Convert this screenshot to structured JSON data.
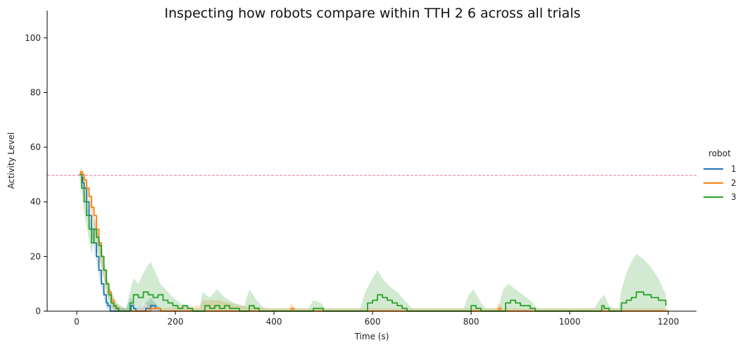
{
  "chart_data": {
    "type": "line",
    "title": "Inspecting how robots compare within TTH 2 6 across all trials",
    "xlabel": "Time (s)",
    "ylabel": "Activity Level",
    "xlim": [
      -60,
      1257
    ],
    "ylim": [
      0,
      110
    ],
    "x_ticks": [
      0,
      200,
      400,
      600,
      800,
      1000,
      1200
    ],
    "y_ticks": [
      0,
      20,
      40,
      60,
      80,
      100
    ],
    "reference_line": {
      "y": 49.7,
      "color": "#e8799a",
      "style": "dashed"
    },
    "legend": {
      "title": "robot",
      "placement": "right"
    },
    "grid": false,
    "series": [
      {
        "name": "1",
        "color": "#1f77b4",
        "points": [
          [
            5,
            50
          ],
          [
            10,
            49
          ],
          [
            12,
            47
          ],
          [
            15,
            45
          ],
          [
            20,
            40
          ],
          [
            25,
            35
          ],
          [
            30,
            30
          ],
          [
            35,
            25
          ],
          [
            40,
            20
          ],
          [
            45,
            15
          ],
          [
            50,
            10
          ],
          [
            55,
            6
          ],
          [
            60,
            3
          ],
          [
            63,
            2
          ],
          [
            68,
            0
          ],
          [
            75,
            0
          ],
          [
            100,
            0
          ],
          [
            110,
            2
          ],
          [
            115,
            1
          ],
          [
            120,
            0
          ],
          [
            130,
            0
          ],
          [
            140,
            1
          ],
          [
            150,
            2
          ],
          [
            160,
            1
          ],
          [
            170,
            0
          ]
        ],
        "band": [
          [
            5,
            50,
            50
          ],
          [
            15,
            43,
            47
          ],
          [
            30,
            28,
            32
          ],
          [
            45,
            13,
            17
          ],
          [
            60,
            1,
            5
          ],
          [
            70,
            0,
            2
          ],
          [
            100,
            0,
            1
          ],
          [
            110,
            0,
            5
          ],
          [
            120,
            0,
            1
          ],
          [
            140,
            0,
            3
          ],
          [
            150,
            0,
            5
          ],
          [
            165,
            0,
            2
          ],
          [
            175,
            0,
            0
          ]
        ]
      },
      {
        "name": "2",
        "color": "#ff7f0e",
        "points": [
          [
            5,
            50
          ],
          [
            8,
            51
          ],
          [
            12,
            50
          ],
          [
            15,
            48
          ],
          [
            20,
            45
          ],
          [
            25,
            42
          ],
          [
            30,
            38
          ],
          [
            35,
            35
          ],
          [
            40,
            30
          ],
          [
            45,
            25
          ],
          [
            50,
            20
          ],
          [
            55,
            15
          ],
          [
            60,
            10
          ],
          [
            65,
            7
          ],
          [
            70,
            4
          ],
          [
            75,
            2
          ],
          [
            80,
            1
          ],
          [
            85,
            0
          ],
          [
            100,
            0
          ],
          [
            130,
            0
          ],
          [
            150,
            1
          ],
          [
            170,
            0
          ],
          [
            200,
            0
          ],
          [
            300,
            0
          ],
          [
            400,
            0
          ],
          [
            435,
            1
          ],
          [
            440,
            0
          ],
          [
            500,
            0
          ],
          [
            600,
            0
          ],
          [
            700,
            0
          ],
          [
            850,
            0
          ],
          [
            855,
            1
          ],
          [
            860,
            0
          ],
          [
            1000,
            0
          ],
          [
            1100,
            0
          ],
          [
            1200,
            0
          ]
        ],
        "band": [
          [
            5,
            50,
            50
          ],
          [
            8,
            49,
            53
          ],
          [
            15,
            46,
            50
          ],
          [
            30,
            35,
            41
          ],
          [
            45,
            22,
            28
          ],
          [
            60,
            7,
            13
          ],
          [
            75,
            0,
            5
          ],
          [
            90,
            0,
            1
          ],
          [
            130,
            0,
            1
          ],
          [
            150,
            0,
            3
          ],
          [
            165,
            0,
            1
          ],
          [
            250,
            0,
            2
          ],
          [
            255,
            0,
            4
          ],
          [
            290,
            0,
            4
          ],
          [
            330,
            0,
            2
          ],
          [
            400,
            0,
            1
          ],
          [
            430,
            0,
            1
          ],
          [
            435,
            0,
            3
          ],
          [
            445,
            0,
            1
          ],
          [
            500,
            0,
            1
          ],
          [
            850,
            0,
            1
          ],
          [
            855,
            0,
            3
          ],
          [
            865,
            0,
            1
          ],
          [
            1200,
            0,
            1
          ]
        ]
      },
      {
        "name": "3",
        "color": "#2ca02c",
        "points": [
          [
            5,
            50
          ],
          [
            10,
            45
          ],
          [
            15,
            40
          ],
          [
            20,
            35
          ],
          [
            25,
            30
          ],
          [
            30,
            25
          ],
          [
            35,
            30
          ],
          [
            40,
            27
          ],
          [
            45,
            24
          ],
          [
            50,
            20
          ],
          [
            55,
            15
          ],
          [
            60,
            10
          ],
          [
            65,
            6
          ],
          [
            70,
            3
          ],
          [
            75,
            2
          ],
          [
            80,
            1
          ],
          [
            85,
            0
          ],
          [
            100,
            0
          ],
          [
            108,
            3
          ],
          [
            115,
            6
          ],
          [
            125,
            5
          ],
          [
            135,
            7
          ],
          [
            145,
            6
          ],
          [
            155,
            5
          ],
          [
            165,
            6
          ],
          [
            175,
            4
          ],
          [
            185,
            3
          ],
          [
            195,
            2
          ],
          [
            205,
            1
          ],
          [
            215,
            2
          ],
          [
            225,
            1
          ],
          [
            235,
            0
          ],
          [
            250,
            0
          ],
          [
            260,
            2
          ],
          [
            270,
            1
          ],
          [
            280,
            2
          ],
          [
            290,
            1
          ],
          [
            300,
            2
          ],
          [
            310,
            1
          ],
          [
            320,
            1
          ],
          [
            330,
            0
          ],
          [
            345,
            0
          ],
          [
            350,
            2
          ],
          [
            360,
            1
          ],
          [
            370,
            0
          ],
          [
            400,
            0
          ],
          [
            420,
            0
          ],
          [
            430,
            0
          ],
          [
            470,
            0
          ],
          [
            480,
            1
          ],
          [
            490,
            1
          ],
          [
            500,
            0
          ],
          [
            580,
            0
          ],
          [
            590,
            3
          ],
          [
            600,
            4
          ],
          [
            610,
            6
          ],
          [
            620,
            5
          ],
          [
            630,
            4
          ],
          [
            640,
            3
          ],
          [
            650,
            2
          ],
          [
            660,
            1
          ],
          [
            670,
            0
          ],
          [
            700,
            0
          ],
          [
            790,
            0
          ],
          [
            800,
            2
          ],
          [
            810,
            1
          ],
          [
            820,
            0
          ],
          [
            860,
            0
          ],
          [
            870,
            3
          ],
          [
            880,
            4
          ],
          [
            890,
            3
          ],
          [
            900,
            2
          ],
          [
            910,
            2
          ],
          [
            920,
            1
          ],
          [
            930,
            0
          ],
          [
            1000,
            0
          ],
          [
            1060,
            0
          ],
          [
            1065,
            2
          ],
          [
            1070,
            1
          ],
          [
            1080,
            0
          ],
          [
            1100,
            0
          ],
          [
            1105,
            3
          ],
          [
            1115,
            4
          ],
          [
            1125,
            5
          ],
          [
            1135,
            7
          ],
          [
            1150,
            6
          ],
          [
            1165,
            5
          ],
          [
            1180,
            4
          ],
          [
            1195,
            2
          ]
        ],
        "band": [
          [
            5,
            50,
            50
          ],
          [
            15,
            36,
            44
          ],
          [
            30,
            21,
            29
          ],
          [
            35,
            26,
            34
          ],
          [
            50,
            16,
            24
          ],
          [
            65,
            3,
            9
          ],
          [
            80,
            0,
            3
          ],
          [
            100,
            0,
            1
          ],
          [
            105,
            0,
            5
          ],
          [
            115,
            2,
            12
          ],
          [
            125,
            1,
            10
          ],
          [
            135,
            3,
            14
          ],
          [
            145,
            2,
            17
          ],
          [
            150,
            1,
            18
          ],
          [
            160,
            2,
            14
          ],
          [
            170,
            0,
            10
          ],
          [
            180,
            0,
            8
          ],
          [
            195,
            0,
            5
          ],
          [
            210,
            0,
            3
          ],
          [
            230,
            0,
            1
          ],
          [
            250,
            0,
            1
          ],
          [
            255,
            0,
            7
          ],
          [
            270,
            0,
            5
          ],
          [
            285,
            0,
            8
          ],
          [
            300,
            0,
            5
          ],
          [
            320,
            0,
            3
          ],
          [
            340,
            0,
            2
          ],
          [
            350,
            0,
            8
          ],
          [
            365,
            0,
            4
          ],
          [
            380,
            0,
            1
          ],
          [
            400,
            0,
            1
          ],
          [
            470,
            0,
            1
          ],
          [
            480,
            0,
            4
          ],
          [
            495,
            0,
            3
          ],
          [
            505,
            0,
            1
          ],
          [
            575,
            0,
            1
          ],
          [
            585,
            0,
            7
          ],
          [
            600,
            0,
            12
          ],
          [
            610,
            0,
            15
          ],
          [
            620,
            0,
            12
          ],
          [
            635,
            0,
            9
          ],
          [
            650,
            0,
            7
          ],
          [
            665,
            0,
            4
          ],
          [
            680,
            0,
            1
          ],
          [
            700,
            0,
            1
          ],
          [
            785,
            0,
            1
          ],
          [
            795,
            0,
            6
          ],
          [
            805,
            0,
            8
          ],
          [
            820,
            0,
            3
          ],
          [
            830,
            0,
            1
          ],
          [
            855,
            0,
            1
          ],
          [
            865,
            0,
            8
          ],
          [
            875,
            0,
            10
          ],
          [
            890,
            0,
            8
          ],
          [
            905,
            0,
            6
          ],
          [
            920,
            0,
            4
          ],
          [
            935,
            0,
            1
          ],
          [
            950,
            0,
            1
          ],
          [
            975,
            0,
            1
          ],
          [
            990,
            0,
            1
          ],
          [
            1050,
            0,
            1
          ],
          [
            1060,
            0,
            4
          ],
          [
            1070,
            0,
            6
          ],
          [
            1080,
            0,
            2
          ],
          [
            1090,
            0,
            1
          ],
          [
            1100,
            0,
            1
          ],
          [
            1105,
            0,
            8
          ],
          [
            1115,
            0,
            14
          ],
          [
            1125,
            0,
            18
          ],
          [
            1135,
            0,
            21
          ],
          [
            1150,
            0,
            19
          ],
          [
            1165,
            0,
            16
          ],
          [
            1180,
            0,
            12
          ],
          [
            1195,
            0,
            6
          ]
        ]
      }
    ]
  }
}
